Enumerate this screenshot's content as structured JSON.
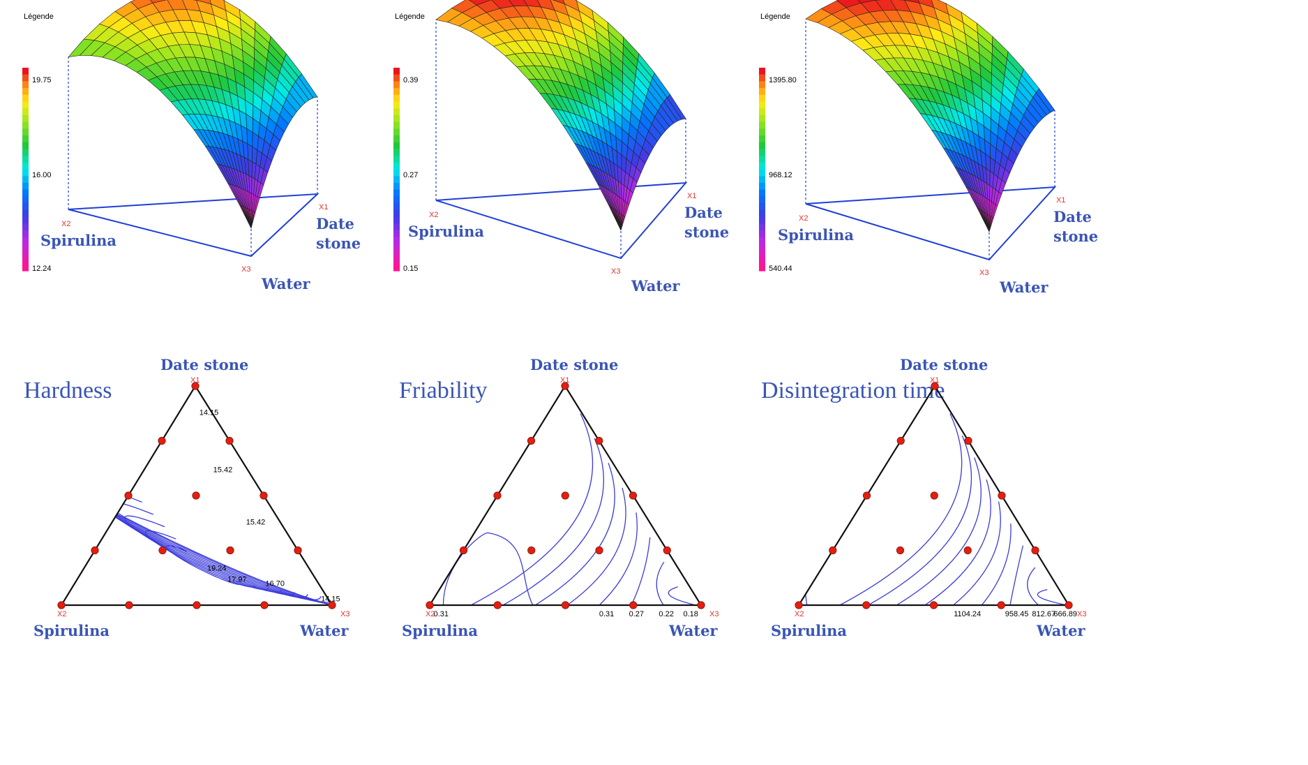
{
  "colors": {
    "axis": "#1f3fd6",
    "contour": "#3b3bdc",
    "point": "#e51e10",
    "text": "#3a55b4",
    "vertex_label": "#e03030"
  },
  "icons": {
    "design_point": "red-dot"
  },
  "chart_data": [
    {
      "type": "surface",
      "title": "Hardness",
      "legend_title": "Légende",
      "legend_ticks": [
        "19.75",
        "16.00",
        "12.24"
      ],
      "legend_range": [
        12.24,
        19.75
      ],
      "components": [
        {
          "name": "Date stone",
          "label": "X1"
        },
        {
          "name": "Spirulina",
          "label": "X2"
        },
        {
          "name": "Water",
          "label": "X3"
        }
      ],
      "vertex_values": {
        "X1": 15.0,
        "X2": 17.2,
        "X3": 12.24
      },
      "peak_value": 19.75
    },
    {
      "type": "surface",
      "title": "Friability",
      "legend_title": "Légende",
      "legend_ticks": [
        "0.39",
        "0.27",
        "0.15"
      ],
      "legend_range": [
        0.15,
        0.39
      ],
      "components": [
        {
          "name": "Date stone",
          "label": "X1"
        },
        {
          "name": "Spirulina",
          "label": "X2"
        },
        {
          "name": "Water",
          "label": "X3"
        }
      ],
      "vertex_values": {
        "X1": 0.2,
        "X2": 0.36,
        "X3": 0.15
      },
      "peak_value": 0.39
    },
    {
      "type": "surface",
      "title": "Disintegration time",
      "legend_title": "Légende",
      "legend_ticks": [
        "1395.80",
        "968.12",
        "540.44"
      ],
      "legend_range": [
        540.44,
        1395.8
      ],
      "components": [
        {
          "name": "Date stone",
          "label": "X1"
        },
        {
          "name": "Spirulina",
          "label": "X2"
        },
        {
          "name": "Water",
          "label": "X3"
        }
      ],
      "vertex_values": {
        "X1": 780,
        "X2": 1310,
        "X3": 540.44
      },
      "peak_value": 1395.8
    },
    {
      "type": "ternary-contour",
      "title": "Hardness",
      "vertices": [
        {
          "name": "Date stone",
          "label": "X1"
        },
        {
          "name": "Spirulina",
          "label": "X2"
        },
        {
          "name": "Water",
          "label": "X3"
        }
      ],
      "contour_labels": [
        {
          "text": "14.15",
          "x1": 0.88,
          "x2": 0.02,
          "x3": 0.1
        },
        {
          "text": "15.42",
          "x1": 0.62,
          "x2": 0.1,
          "x3": 0.28
        },
        {
          "text": "15.42",
          "x1": 0.38,
          "x2": 0.1,
          "x3": 0.52
        },
        {
          "text": "19.24",
          "x1": 0.17,
          "x2": 0.35,
          "x3": 0.48
        },
        {
          "text": "17.97",
          "x1": 0.12,
          "x2": 0.3,
          "x3": 0.58
        },
        {
          "text": "16.70",
          "x1": 0.1,
          "x2": 0.17,
          "x3": 0.73
        },
        {
          "text": "14.15",
          "x1": 0.03,
          "x2": 0.0,
          "x3": 0.97
        }
      ],
      "contour_levels": [
        14.15,
        15.42,
        16.7,
        17.97,
        19.24
      ],
      "design_points": [
        [
          1,
          0,
          0
        ],
        [
          0.75,
          0.25,
          0
        ],
        [
          0.75,
          0,
          0.25
        ],
        [
          0.5,
          0.5,
          0
        ],
        [
          0.5,
          0.25,
          0.25
        ],
        [
          0.5,
          0,
          0.5
        ],
        [
          0.25,
          0.75,
          0
        ],
        [
          0.25,
          0.5,
          0.25
        ],
        [
          0.25,
          0.25,
          0.5
        ],
        [
          0.25,
          0,
          0.75
        ],
        [
          0,
          1,
          0
        ],
        [
          0,
          0.75,
          0.25
        ],
        [
          0,
          0.5,
          0.5
        ],
        [
          0,
          0.25,
          0.75
        ],
        [
          0,
          0,
          1
        ]
      ]
    },
    {
      "type": "ternary-contour",
      "title": "Friability",
      "vertices": [
        {
          "name": "Date stone",
          "label": "X1"
        },
        {
          "name": "Spirulina",
          "label": "X2"
        },
        {
          "name": "Water",
          "label": "X3"
        }
      ],
      "contour_labels": [
        {
          "text": "0.31",
          "x1": 0.0,
          "x2": 0.96,
          "x3": 0.04
        },
        {
          "text": "0.31",
          "x1": 0.0,
          "x2": 0.35,
          "x3": 0.65
        },
        {
          "text": "0.27",
          "x1": 0.0,
          "x2": 0.24,
          "x3": 0.76
        },
        {
          "text": "0.22",
          "x1": 0.0,
          "x2": 0.13,
          "x3": 0.87
        },
        {
          "text": "0.18",
          "x1": 0.0,
          "x2": 0.04,
          "x3": 0.96
        }
      ],
      "contour_levels": [
        0.18,
        0.22,
        0.27,
        0.31
      ],
      "design_points": [
        [
          1,
          0,
          0
        ],
        [
          0.75,
          0.25,
          0
        ],
        [
          0.75,
          0,
          0.25
        ],
        [
          0.5,
          0.5,
          0
        ],
        [
          0.5,
          0.25,
          0.25
        ],
        [
          0.5,
          0,
          0.5
        ],
        [
          0.25,
          0.75,
          0
        ],
        [
          0.25,
          0.5,
          0.25
        ],
        [
          0.25,
          0.25,
          0.5
        ],
        [
          0.25,
          0,
          0.75
        ],
        [
          0,
          1,
          0
        ],
        [
          0,
          0.75,
          0.25
        ],
        [
          0,
          0.5,
          0.5
        ],
        [
          0,
          0.25,
          0.75
        ],
        [
          0,
          0,
          1
        ]
      ]
    },
    {
      "type": "ternary-contour",
      "title": "Disintegration time",
      "vertices": [
        {
          "name": "Date stone",
          "label": "X1"
        },
        {
          "name": "Spirulina",
          "label": "X2"
        },
        {
          "name": "Water",
          "label": "X3"
        }
      ],
      "contour_labels": [
        {
          "text": "1104.24",
          "x1": 0.0,
          "x2": 0.4,
          "x3": 0.6
        },
        {
          "text": "958.45",
          "x1": 0.0,
          "x2": 0.21,
          "x3": 0.79
        },
        {
          "text": "812.67",
          "x1": 0.0,
          "x2": 0.11,
          "x3": 0.89
        },
        {
          "text": "666.89",
          "x1": 0.0,
          "x2": 0.03,
          "x3": 0.97
        }
      ],
      "contour_levels": [
        666.89,
        812.67,
        958.45,
        1104.24
      ],
      "design_points": [
        [
          1,
          0,
          0
        ],
        [
          0.75,
          0.25,
          0
        ],
        [
          0.75,
          0,
          0.25
        ],
        [
          0.5,
          0.5,
          0
        ],
        [
          0.5,
          0.25,
          0.25
        ],
        [
          0.5,
          0,
          0.5
        ],
        [
          0.25,
          0.75,
          0
        ],
        [
          0.25,
          0.5,
          0.25
        ],
        [
          0.25,
          0.25,
          0.5
        ],
        [
          0.25,
          0,
          0.75
        ],
        [
          0,
          1,
          0
        ],
        [
          0,
          0.75,
          0.25
        ],
        [
          0,
          0.5,
          0.5
        ],
        [
          0,
          0.25,
          0.75
        ],
        [
          0,
          0,
          1
        ]
      ]
    }
  ]
}
